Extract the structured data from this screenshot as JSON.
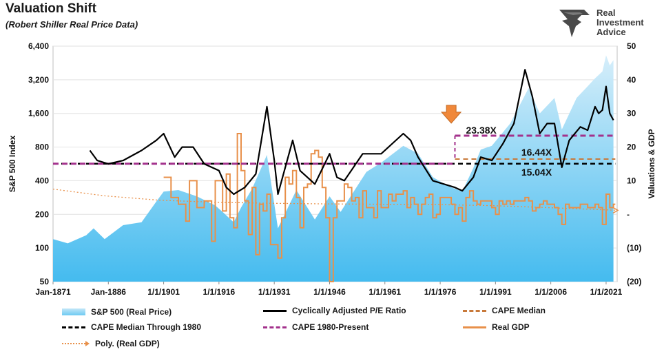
{
  "title": "Valuation Shift",
  "subtitle": "(Robert Shiller Real Price Data)",
  "brand": {
    "line1": "Real",
    "line2": "Investment",
    "line3": "Advice"
  },
  "chart_data": {
    "type": "line",
    "left_axis": {
      "label": "S&P 500 Index",
      "scale": "log2",
      "ticks": [
        "6,400",
        "3,200",
        "1,600",
        "800",
        "400",
        "200",
        "100",
        "50"
      ],
      "tick_values": [
        6400,
        3200,
        1600,
        800,
        400,
        200,
        100,
        50
      ]
    },
    "right_axis": {
      "label": "Valuations & GDP",
      "ticks": [
        "50",
        "40",
        "30",
        "20",
        "10",
        "-",
        "(10)",
        "(20)"
      ],
      "tick_values": [
        50,
        40,
        30,
        20,
        10,
        0,
        -10,
        -20
      ]
    },
    "x_axis": {
      "ticks": [
        "Jan-1871",
        "Jan-1886",
        "1/1/1901",
        "1/1/1916",
        "1/1/1931",
        "1/1/1946",
        "1/1/1961",
        "1/1/1976",
        "1/1/1991",
        "1/1/2006",
        "1/1/2021"
      ],
      "tick_years": [
        1871,
        1886,
        1901,
        1916,
        1931,
        1946,
        1961,
        1976,
        1991,
        2006,
        2021
      ],
      "range": [
        1871,
        2024
      ]
    },
    "series": [
      {
        "name": "S&P 500 (Real Price)",
        "kind": "area",
        "axis": "left",
        "color": "#6ecaf2",
        "points": [
          [
            1871,
            120
          ],
          [
            1875,
            110
          ],
          [
            1880,
            130
          ],
          [
            1882,
            150
          ],
          [
            1885,
            120
          ],
          [
            1890,
            160
          ],
          [
            1895,
            170
          ],
          [
            1899,
            260
          ],
          [
            1901,
            320
          ],
          [
            1905,
            330
          ],
          [
            1910,
            290
          ],
          [
            1915,
            240
          ],
          [
            1917,
            210
          ],
          [
            1920,
            170
          ],
          [
            1922,
            230
          ],
          [
            1925,
            340
          ],
          [
            1929,
            680
          ],
          [
            1932,
            150
          ],
          [
            1937,
            330
          ],
          [
            1942,
            180
          ],
          [
            1946,
            290
          ],
          [
            1949,
            210
          ],
          [
            1952,
            300
          ],
          [
            1956,
            480
          ],
          [
            1960,
            580
          ],
          [
            1966,
            820
          ],
          [
            1970,
            700
          ],
          [
            1974,
            430
          ],
          [
            1978,
            360
          ],
          [
            1982,
            320
          ],
          [
            1985,
            520
          ],
          [
            1987,
            760
          ],
          [
            1990,
            820
          ],
          [
            1995,
            1300
          ],
          [
            2000,
            2700
          ],
          [
            2003,
            1600
          ],
          [
            2007,
            2200
          ],
          [
            2009,
            1150
          ],
          [
            2013,
            2200
          ],
          [
            2016,
            2800
          ],
          [
            2018,
            3300
          ],
          [
            2020,
            3800
          ],
          [
            2021,
            5300
          ],
          [
            2022,
            4300
          ],
          [
            2023,
            4800
          ]
        ]
      },
      {
        "name": "Cyclically Adjusted P/E Ratio",
        "kind": "line",
        "axis": "right",
        "color": "#000000",
        "points": [
          [
            1881,
            19
          ],
          [
            1883,
            16
          ],
          [
            1886,
            15
          ],
          [
            1890,
            16
          ],
          [
            1895,
            19
          ],
          [
            1899,
            22
          ],
          [
            1901,
            24
          ],
          [
            1904,
            17
          ],
          [
            1906,
            20
          ],
          [
            1909,
            20
          ],
          [
            1912,
            15
          ],
          [
            1916,
            13
          ],
          [
            1918,
            8
          ],
          [
            1920,
            6
          ],
          [
            1923,
            8
          ],
          [
            1926,
            12
          ],
          [
            1929,
            32
          ],
          [
            1931,
            16
          ],
          [
            1932,
            6
          ],
          [
            1934,
            14
          ],
          [
            1936,
            22
          ],
          [
            1938,
            13
          ],
          [
            1942,
            9
          ],
          [
            1946,
            18
          ],
          [
            1948,
            11
          ],
          [
            1950,
            10
          ],
          [
            1955,
            18
          ],
          [
            1960,
            18
          ],
          [
            1966,
            24
          ],
          [
            1968,
            22
          ],
          [
            1970,
            17
          ],
          [
            1974,
            10
          ],
          [
            1977,
            9
          ],
          [
            1980,
            8
          ],
          [
            1982,
            7
          ],
          [
            1985,
            11
          ],
          [
            1987,
            17
          ],
          [
            1990,
            16
          ],
          [
            1993,
            21
          ],
          [
            1996,
            27
          ],
          [
            1999,
            43
          ],
          [
            2001,
            35
          ],
          [
            2003,
            24
          ],
          [
            2005,
            27
          ],
          [
            2007,
            27
          ],
          [
            2009,
            14
          ],
          [
            2011,
            22
          ],
          [
            2014,
            26
          ],
          [
            2016,
            25
          ],
          [
            2018,
            32
          ],
          [
            2019,
            30
          ],
          [
            2020,
            31
          ],
          [
            2021,
            38
          ],
          [
            2022,
            30
          ],
          [
            2023,
            28
          ]
        ]
      },
      {
        "name": "CAPE Median",
        "kind": "hline",
        "axis": "right",
        "color": "#c8793a",
        "value": 16.44,
        "from": 1980,
        "to": 2024
      },
      {
        "name": "CAPE Median Through 1980",
        "kind": "hline",
        "axis": "right",
        "color": "#000000",
        "value": 15.04,
        "from": 1871,
        "to": 2024
      },
      {
        "name": "CAPE 1980-Present",
        "kind": "hline",
        "axis": "right",
        "color": "#a3318c",
        "value": 23.38,
        "from": 1980,
        "to": 2024
      },
      {
        "name": "Real GDP",
        "kind": "step",
        "axis": "right",
        "color": "#e8904a",
        "points": [
          [
            1901,
            11
          ],
          [
            1903,
            5
          ],
          [
            1905,
            3
          ],
          [
            1907,
            -2
          ],
          [
            1908,
            10
          ],
          [
            1910,
            2
          ],
          [
            1912,
            4
          ],
          [
            1914,
            -8
          ],
          [
            1915,
            10
          ],
          [
            1917,
            1
          ],
          [
            1918,
            12
          ],
          [
            1919,
            -1
          ],
          [
            1920,
            -4
          ],
          [
            1921,
            24
          ],
          [
            1922,
            13
          ],
          [
            1923,
            4
          ],
          [
            1924,
            -6
          ],
          [
            1925,
            8
          ],
          [
            1926,
            -12
          ],
          [
            1927,
            3
          ],
          [
            1928,
            1
          ],
          [
            1929,
            6
          ],
          [
            1930,
            -9
          ],
          [
            1932,
            -13
          ],
          [
            1933,
            -1
          ],
          [
            1934,
            11
          ],
          [
            1935,
            9
          ],
          [
            1936,
            13
          ],
          [
            1937,
            5
          ],
          [
            1938,
            -4
          ],
          [
            1939,
            8
          ],
          [
            1940,
            9
          ],
          [
            1941,
            18
          ],
          [
            1942,
            19
          ],
          [
            1943,
            17
          ],
          [
            1944,
            8
          ],
          [
            1945,
            -1
          ],
          [
            1946,
            -20
          ],
          [
            1947,
            -1
          ],
          [
            1948,
            4
          ],
          [
            1950,
            9
          ],
          [
            1951,
            8
          ],
          [
            1952,
            4
          ],
          [
            1953,
            5
          ],
          [
            1954,
            -1
          ],
          [
            1955,
            7
          ],
          [
            1956,
            2
          ],
          [
            1958,
            -1
          ],
          [
            1959,
            7
          ],
          [
            1960,
            2
          ],
          [
            1961,
            2
          ],
          [
            1962,
            6
          ],
          [
            1963,
            4
          ],
          [
            1964,
            6
          ],
          [
            1966,
            7
          ],
          [
            1967,
            2
          ],
          [
            1968,
            5
          ],
          [
            1969,
            3
          ],
          [
            1970,
            0
          ],
          [
            1971,
            3
          ],
          [
            1972,
            5
          ],
          [
            1973,
            6
          ],
          [
            1974,
            -1
          ],
          [
            1975,
            0
          ],
          [
            1976,
            5
          ],
          [
            1977,
            5
          ],
          [
            1978,
            5
          ],
          [
            1979,
            3
          ],
          [
            1980,
            0
          ],
          [
            1981,
            2
          ],
          [
            1982,
            -2
          ],
          [
            1983,
            5
          ],
          [
            1984,
            7
          ],
          [
            1985,
            4
          ],
          [
            1986,
            3
          ],
          [
            1987,
            4
          ],
          [
            1988,
            4
          ],
          [
            1989,
            4
          ],
          [
            1990,
            2
          ],
          [
            1991,
            0
          ],
          [
            1992,
            4
          ],
          [
            1993,
            3
          ],
          [
            1994,
            4
          ],
          [
            1995,
            3
          ],
          [
            1996,
            4
          ],
          [
            1997,
            4
          ],
          [
            1998,
            4
          ],
          [
            1999,
            5
          ],
          [
            2000,
            4
          ],
          [
            2001,
            1
          ],
          [
            2002,
            2
          ],
          [
            2003,
            3
          ],
          [
            2004,
            4
          ],
          [
            2005,
            3
          ],
          [
            2006,
            3
          ],
          [
            2007,
            2
          ],
          [
            2008,
            0
          ],
          [
            2009,
            -3
          ],
          [
            2010,
            3
          ],
          [
            2011,
            2
          ],
          [
            2012,
            2
          ],
          [
            2013,
            2
          ],
          [
            2014,
            3
          ],
          [
            2015,
            3
          ],
          [
            2016,
            2
          ],
          [
            2017,
            2
          ],
          [
            2018,
            3
          ],
          [
            2019,
            2
          ],
          [
            2020,
            -3
          ],
          [
            2021,
            6
          ],
          [
            2022,
            2
          ],
          [
            2023,
            3
          ]
        ]
      },
      {
        "name": "Poly. (Real GDP)",
        "kind": "trend",
        "axis": "right",
        "color": "#e8904a",
        "points": [
          [
            1871,
            7.5
          ],
          [
            1885,
            5.5
          ],
          [
            1900,
            4.2
          ],
          [
            1915,
            3.6
          ],
          [
            1930,
            3.3
          ],
          [
            1945,
            3.1
          ],
          [
            1960,
            3.0
          ],
          [
            1975,
            2.9
          ],
          [
            1990,
            2.6
          ],
          [
            2005,
            2.0
          ],
          [
            2024,
            1.2
          ]
        ]
      }
    ],
    "annotations": [
      {
        "text": "23.38X",
        "x": 1983,
        "value": 23.38
      },
      {
        "text": "16.44X",
        "x": 1998,
        "value": 16.44
      },
      {
        "text": "15.04X",
        "x": 1998,
        "value": 15.04
      }
    ],
    "legend": "bottom"
  },
  "legend_items": [
    "S&P 500 (Real Price)",
    "Cyclically Adjusted P/E Ratio",
    "CAPE Median",
    "CAPE Median Through 1980",
    "CAPE 1980-Present",
    "Real GDP",
    "Poly. (Real GDP)"
  ]
}
